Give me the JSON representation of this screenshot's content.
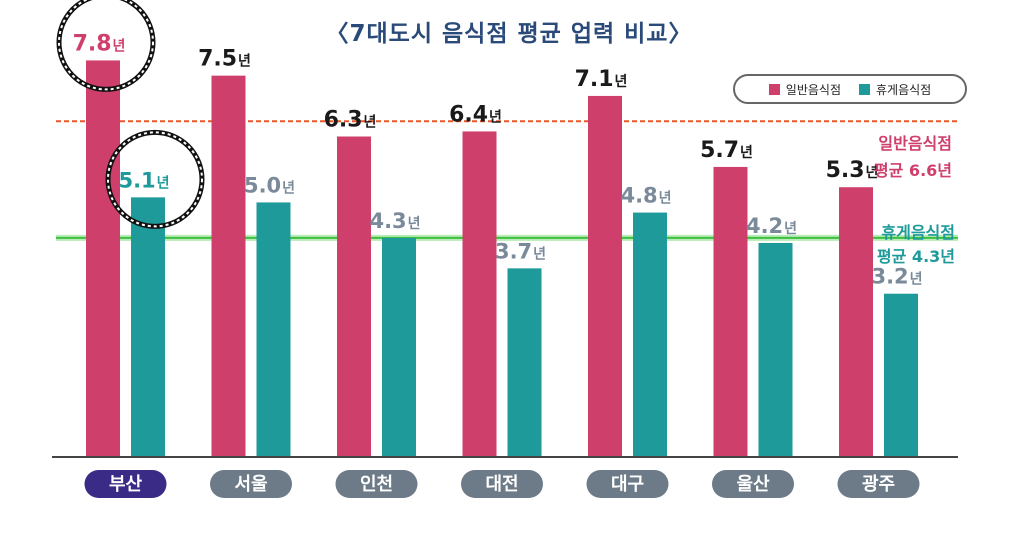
{
  "chart_data": {
    "type": "bar",
    "title": "〈7대도시 음식점 평균 업력 비교〉",
    "categories": [
      "부산",
      "서울",
      "인천",
      "대전",
      "대구",
      "울산",
      "광주"
    ],
    "highlight_category": "부산",
    "unit": "년",
    "series": [
      {
        "name": "일반음식점",
        "color": "#cf3f6c",
        "values": [
          7.8,
          7.5,
          6.3,
          6.4,
          7.1,
          5.7,
          5.3
        ],
        "labels": [
          "7.8",
          "7.5",
          "6.3",
          "6.4",
          "7.1",
          "5.7",
          "5.3"
        ]
      },
      {
        "name": "휴게음식점",
        "color": "#1e9a9a",
        "values": [
          5.1,
          5.0,
          4.3,
          3.7,
          4.8,
          4.2,
          3.2
        ],
        "labels": [
          "5.1",
          "5.0",
          "4.3",
          "3.7",
          "4.8",
          "4.2",
          "3.2"
        ]
      }
    ],
    "averages": [
      {
        "series": "일반음식점",
        "line1": "일반음식점",
        "line2": "평균 6.6년",
        "value": 6.6,
        "color": "#e8582a",
        "text_color": "#cf3f6c"
      },
      {
        "series": "휴게음식점",
        "line1": "휴게음식점",
        "line2": "평균 4.3년",
        "value": 4.3,
        "color": "#3fbf3f",
        "text_color": "#1e9a9a"
      }
    ],
    "ylim": [
      0,
      8.4
    ],
    "xlabel": "",
    "ylabel": "",
    "legend_position": "top-right"
  }
}
